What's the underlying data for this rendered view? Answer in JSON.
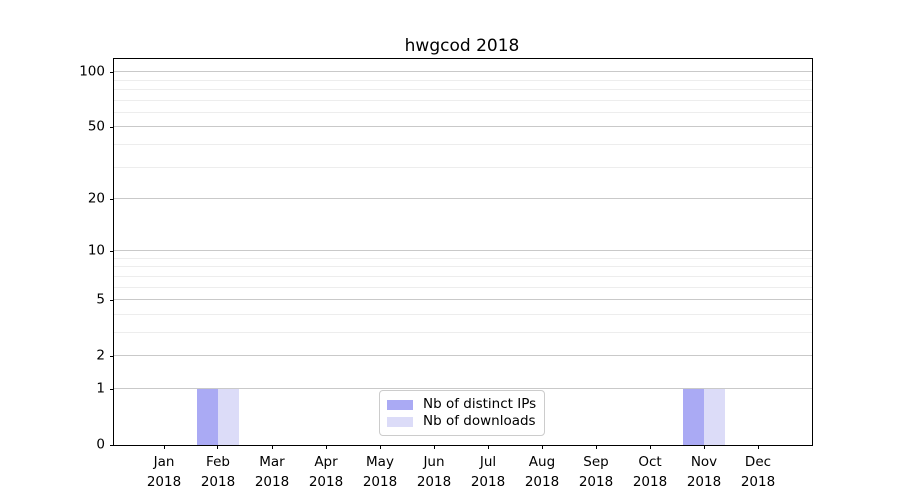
{
  "title": "hwgcod 2018",
  "chart_data": {
    "type": "bar",
    "title": "hwgcod 2018",
    "categories": [
      "Jan 2018",
      "Feb 2018",
      "Mar 2018",
      "Apr 2018",
      "May 2018",
      "Jun 2018",
      "Jul 2018",
      "Aug 2018",
      "Sep 2018",
      "Oct 2018",
      "Nov 2018",
      "Dec 2018"
    ],
    "series": [
      {
        "name": "Nb of distinct IPs",
        "color": "#aaaaf4",
        "values": [
          0,
          1,
          0,
          0,
          0,
          0,
          0,
          0,
          0,
          0,
          1,
          0
        ]
      },
      {
        "name": "Nb of downloads",
        "color": "#dcdcf8",
        "values": [
          0,
          1,
          0,
          0,
          0,
          0,
          0,
          0,
          0,
          0,
          1,
          0
        ]
      }
    ],
    "y_axis": {
      "scale": "log1p",
      "max": 117.8,
      "ticks": [
        0,
        1,
        2,
        5,
        10,
        20,
        50,
        100
      ],
      "minor_ticks": [
        3,
        4,
        6,
        7,
        8,
        9,
        30,
        40,
        60,
        70,
        80,
        90
      ]
    },
    "grid": "horizontal-only",
    "legend_position": "lower center",
    "colors": {
      "major_grid": "#c9c9c9",
      "minor_grid": "#ededed",
      "axis": "#000000"
    }
  }
}
